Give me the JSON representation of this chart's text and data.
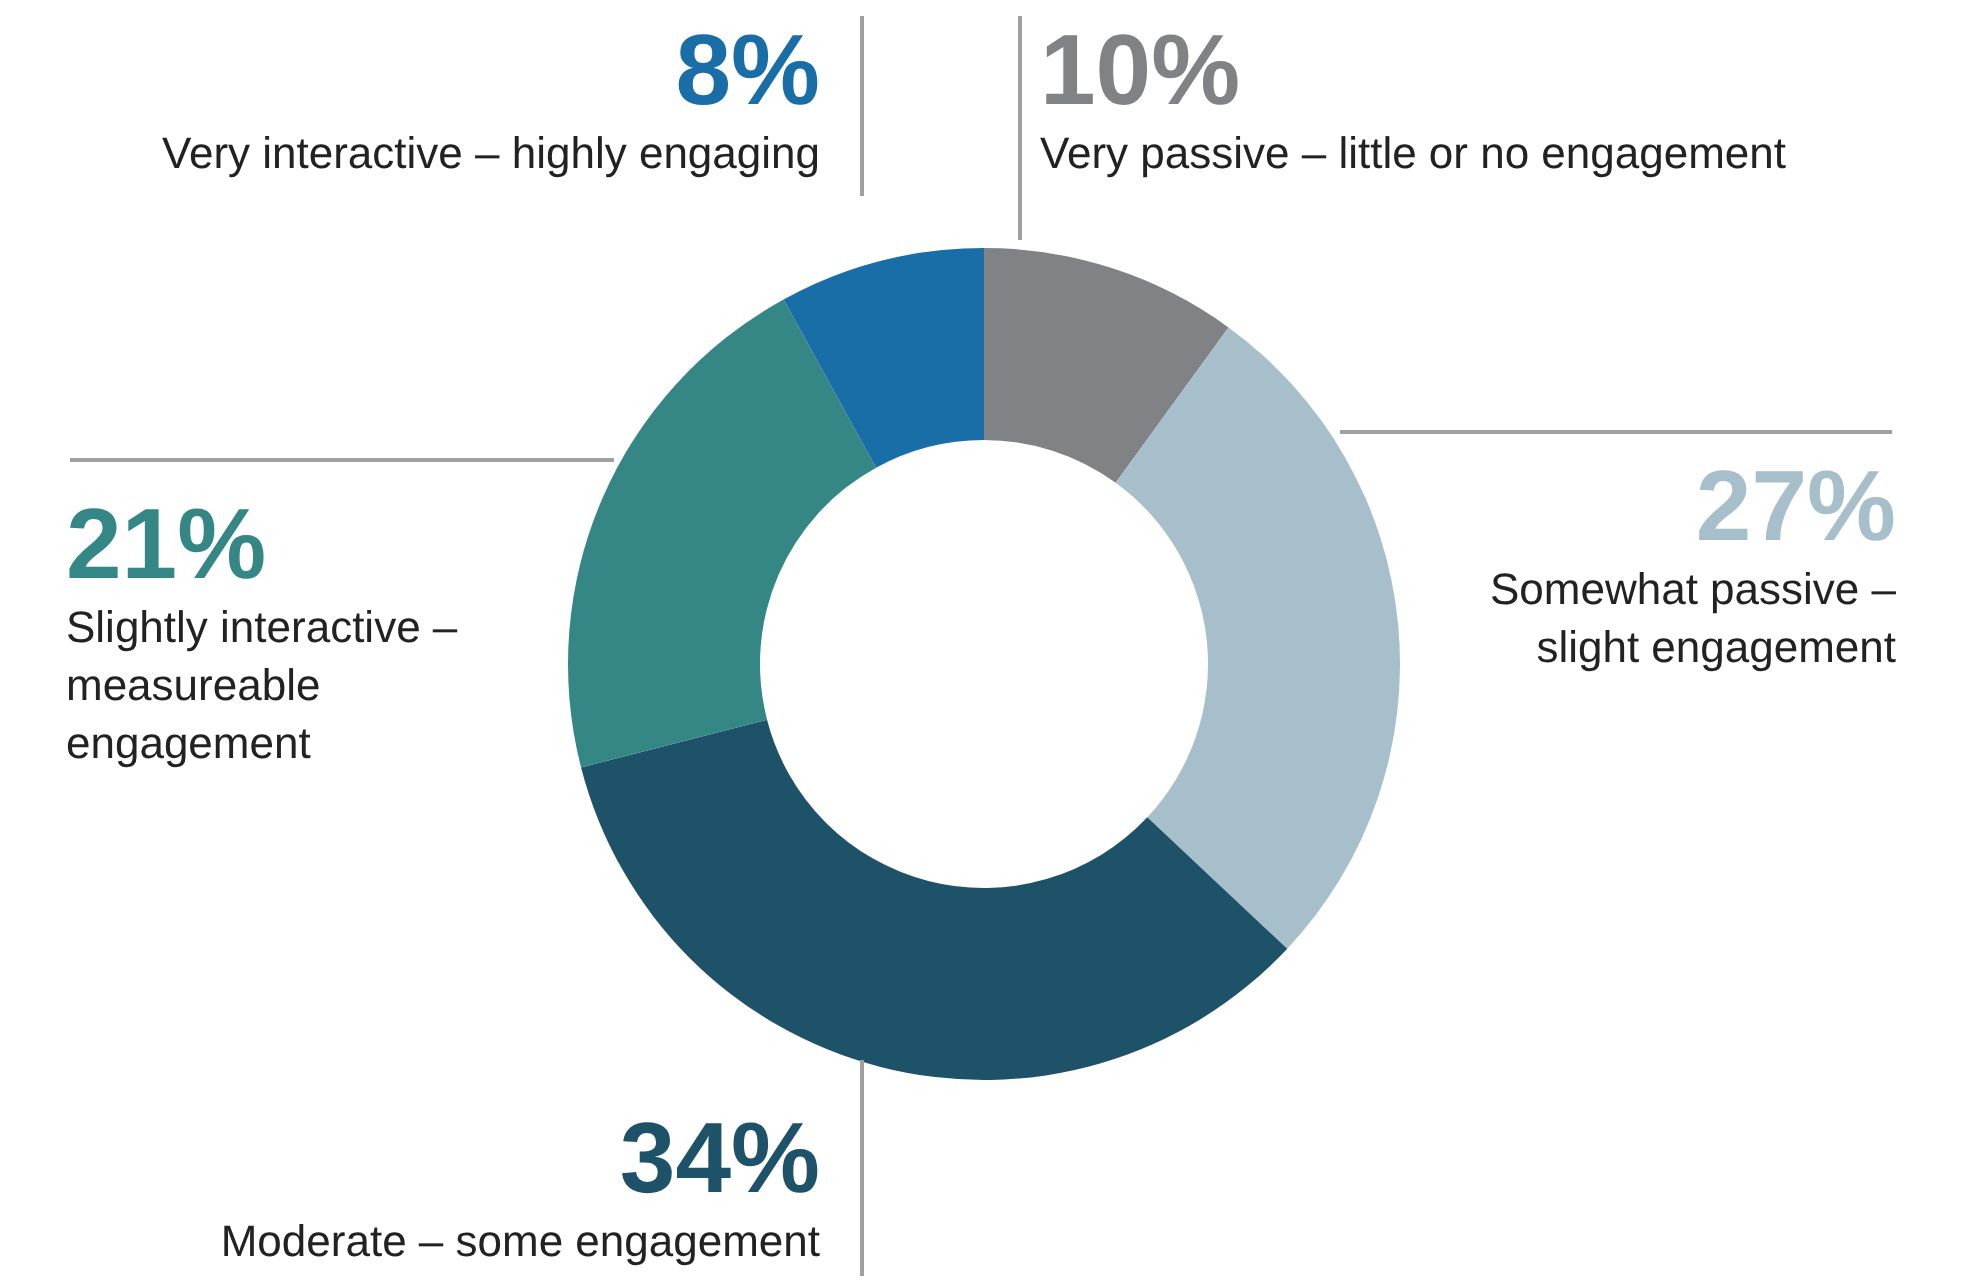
{
  "chart_data": {
    "type": "donut",
    "categories": [
      "Very passive – little or no engagement",
      "Somewhat passive – slight engagement",
      "Moderate – some engagement",
      "Slightly interactive – measureable engagement",
      "Very interactive – highly engaging"
    ],
    "values": [
      10,
      27,
      34,
      21,
      8
    ],
    "value_labels": [
      "10%",
      "27%",
      "34%",
      "21%",
      "8%"
    ],
    "colors": [
      "#818285",
      "#a7bfcb",
      "#1e5269",
      "#358785",
      "#1a6ea8"
    ],
    "legend": false
  }
}
